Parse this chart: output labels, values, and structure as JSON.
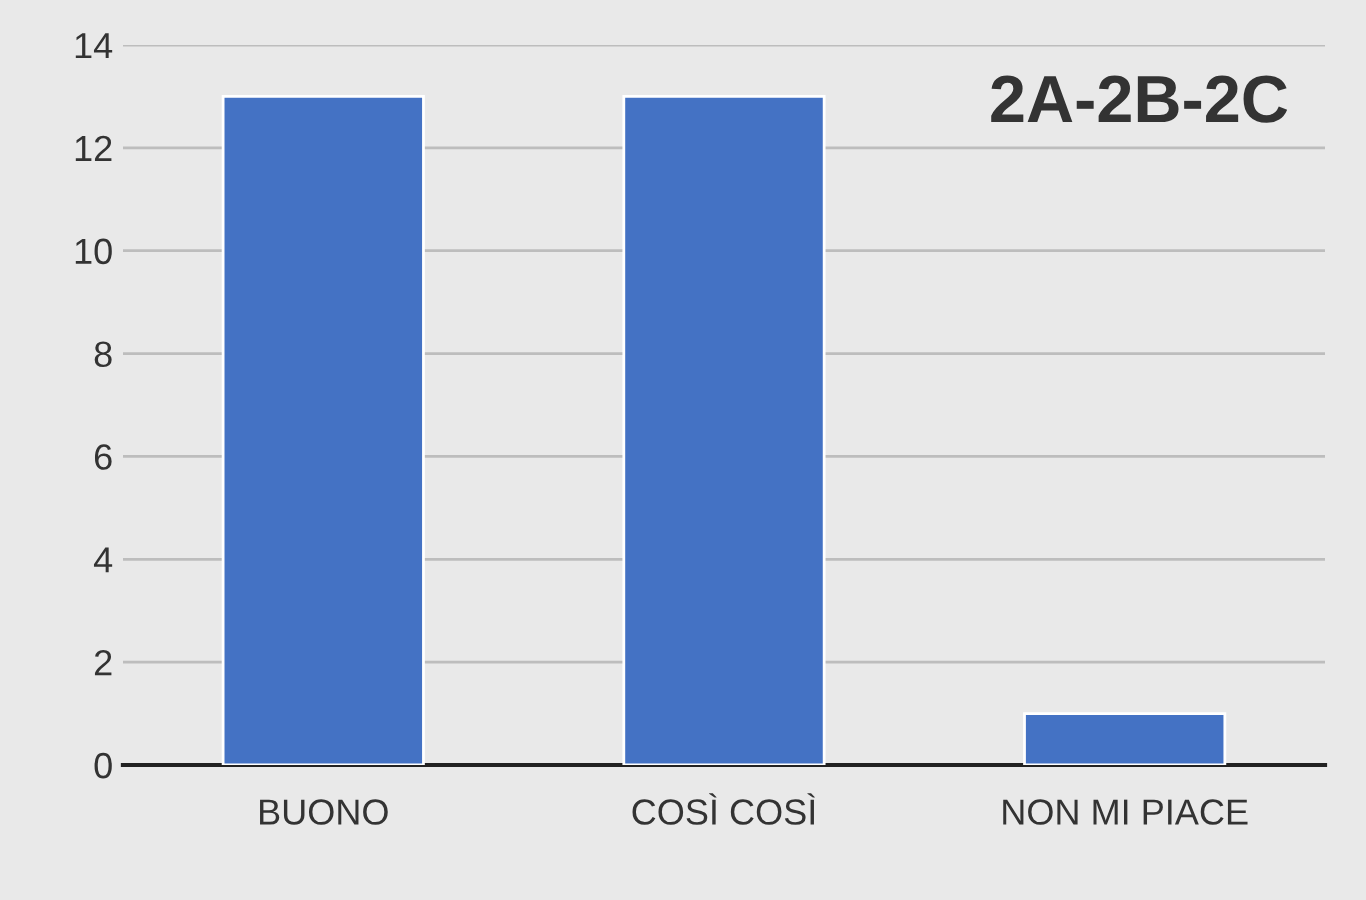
{
  "chart_data": {
    "type": "bar",
    "title": "2A-2B-2C",
    "categories": [
      "BUONO",
      "COSÌ COSÌ",
      "NON MI PIACE"
    ],
    "values": [
      13,
      13,
      1
    ],
    "color": "#4472c4",
    "ylim": [
      0,
      14
    ],
    "yticks": [
      0,
      2,
      4,
      6,
      8,
      10,
      12,
      14
    ],
    "grid": "y"
  }
}
